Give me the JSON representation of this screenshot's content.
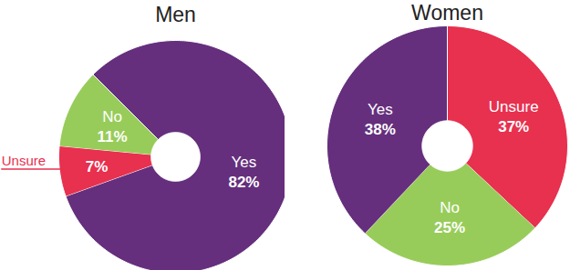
{
  "chart_data": [
    {
      "type": "pie",
      "title": "Men",
      "categories": [
        "Yes",
        "Unsure",
        "No"
      ],
      "values": [
        82,
        7,
        11
      ],
      "value_labels": [
        "82%",
        "7%",
        "11%"
      ],
      "colors": [
        "#652f7d",
        "#e8304f",
        "#98cc5a"
      ],
      "data_labels": true
    },
    {
      "type": "pie",
      "title": "Women",
      "categories": [
        "Unsure",
        "No",
        "Yes"
      ],
      "values": [
        37,
        25,
        38
      ],
      "value_labels": [
        "37%",
        "25%",
        "38%"
      ],
      "colors": [
        "#e8304f",
        "#98cc5a",
        "#652f7d"
      ],
      "data_labels": true
    }
  ]
}
